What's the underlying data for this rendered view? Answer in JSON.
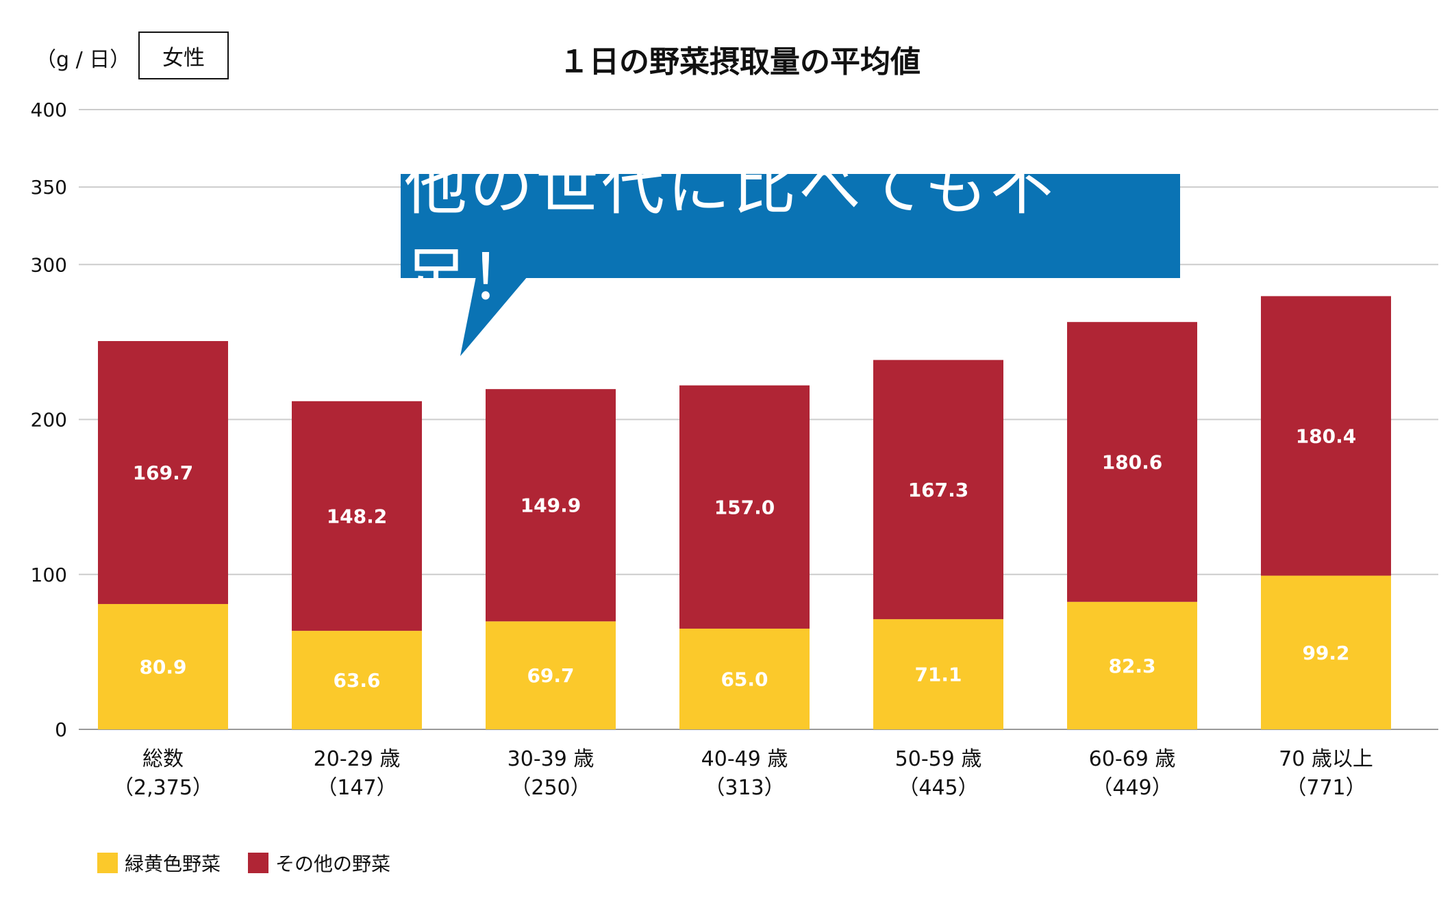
{
  "unit_label": "（g / 日）",
  "badge": "女性",
  "callout": "他の世代に比べても不足！",
  "colors": {
    "green_yellow": "#FBC92B",
    "other": "#B02535",
    "callout_bg": "#0A73B4",
    "grid": "#cccccc"
  },
  "chart_data": {
    "type": "bar",
    "stacked": true,
    "title": "１日の野菜摂取量の平均値",
    "categories": [
      "総数",
      "20-29 歳",
      "30-39 歳",
      "40-49 歳",
      "50-59 歳",
      "60-69 歳",
      "70 歳以上"
    ],
    "category_counts": [
      "（2,375）",
      "（147）",
      "（250）",
      "（313）",
      "（445）",
      "（449）",
      "（771）"
    ],
    "series": [
      {
        "name": "緑黄色野菜",
        "values": [
          80.9,
          63.6,
          69.7,
          65.0,
          71.1,
          82.3,
          99.2
        ],
        "labels": [
          "80.9",
          "63.6",
          "69.7",
          "65.0",
          "71.1",
          "82.3",
          "99.2"
        ]
      },
      {
        "name": "その他の野菜",
        "values": [
          169.7,
          148.2,
          149.9,
          157.0,
          167.3,
          180.6,
          180.4
        ],
        "labels": [
          "169.7",
          "148.2",
          "149.9",
          "157.0",
          "167.3",
          "180.6",
          "180.4"
        ]
      }
    ],
    "ylim": [
      0,
      400
    ],
    "yticks": [
      0,
      100,
      200,
      300,
      350,
      400
    ],
    "grid": true,
    "legend_position": "bottom-left"
  }
}
